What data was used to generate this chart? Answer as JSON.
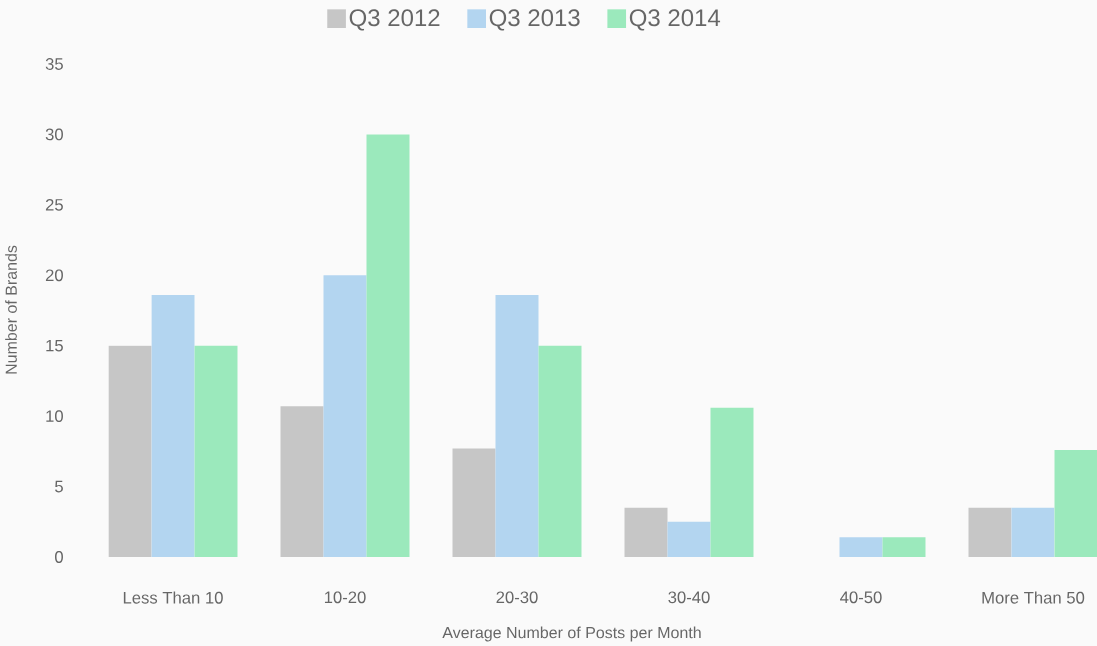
{
  "chart_data": {
    "type": "bar",
    "xlabel": "Average Number of Posts per Month",
    "ylabel": "Number of Brands",
    "categories": [
      "Less Than 10",
      "10-20",
      "20-30",
      "30-40",
      "40-50",
      "More Than 50"
    ],
    "series": [
      {
        "name": "Q3 2012",
        "color": "#c6c6c6",
        "values": [
          15,
          10.7,
          7.7,
          3.5,
          0,
          3.5
        ]
      },
      {
        "name": "Q3 2013",
        "color": "#b3d5f0",
        "values": [
          18.6,
          20,
          18.6,
          2.5,
          1.4,
          3.5
        ]
      },
      {
        "name": "Q3 2014",
        "color": "#9be9bc",
        "values": [
          15,
          30,
          15,
          10.6,
          1.4,
          7.6
        ]
      }
    ],
    "ylim": [
      0,
      35
    ],
    "yticks": [
      0,
      5,
      10,
      15,
      20,
      25,
      30,
      35
    ],
    "grid": false,
    "legend": "top"
  }
}
